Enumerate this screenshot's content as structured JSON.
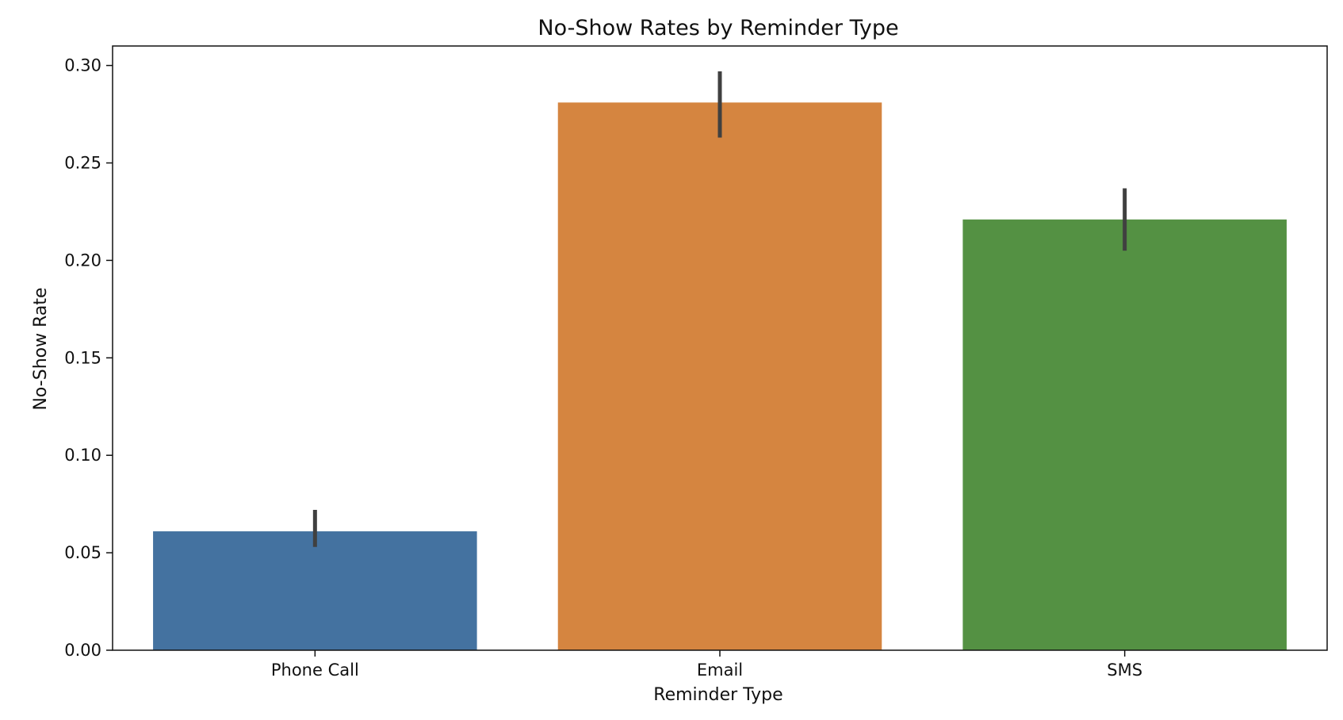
{
  "chart_data": {
    "type": "bar",
    "title": "No-Show Rates by Reminder Type",
    "xlabel": "Reminder Type",
    "ylabel": "No-Show Rate",
    "categories": [
      "Phone Call",
      "Email",
      "SMS"
    ],
    "values": [
      0.061,
      0.281,
      0.221
    ],
    "error_bars": [
      {
        "low": 0.053,
        "high": 0.072
      },
      {
        "low": 0.263,
        "high": 0.297
      },
      {
        "low": 0.205,
        "high": 0.237
      }
    ],
    "colors": [
      "#4472a0",
      "#d58540",
      "#549143"
    ],
    "error_bar_color": "#404040",
    "ylim": [
      0.0,
      0.31
    ],
    "yticks": [
      0.0,
      0.05,
      0.1,
      0.15,
      0.2,
      0.25,
      0.3
    ],
    "ytick_labels": [
      "0.00",
      "0.05",
      "0.10",
      "0.15",
      "0.20",
      "0.25",
      "0.30"
    ],
    "grid": false,
    "legend": "none"
  }
}
